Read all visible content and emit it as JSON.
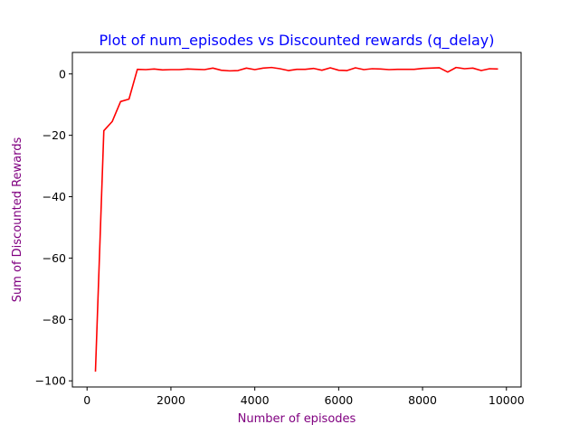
{
  "chart_data": {
    "type": "line",
    "title": "Plot of num_episodes vs Discounted rewards (q_delay)",
    "xlabel": "Number of episodes",
    "ylabel": "Sum of Discounted Rewards",
    "xlim": [
      -350,
      10350
    ],
    "ylim": [
      -102,
      7
    ],
    "xticks": [
      0,
      2000,
      4000,
      6000,
      8000,
      10000
    ],
    "yticks": [
      0,
      -20,
      -40,
      -60,
      -80,
      -100
    ],
    "grid": false,
    "colors": {
      "title": "#0000ff",
      "axis_label": "#800080",
      "line": "#ff0000"
    },
    "x": [
      200,
      400,
      600,
      800,
      1000,
      1200,
      1400,
      1600,
      1800,
      2000,
      2200,
      2400,
      2600,
      2800,
      3000,
      3200,
      3400,
      3600,
      3800,
      4000,
      4200,
      4400,
      4600,
      4800,
      5000,
      5200,
      5400,
      5600,
      5800,
      6000,
      6200,
      6400,
      6600,
      6800,
      7000,
      7200,
      7400,
      7600,
      7800,
      8000,
      8200,
      8400,
      8600,
      8800,
      9000,
      9200,
      9400,
      9600,
      9800
    ],
    "y": [
      -97,
      -18.5,
      -15.5,
      -9,
      -8.2,
      1.5,
      1.4,
      1.6,
      1.3,
      1.4,
      1.4,
      1.6,
      1.5,
      1.4,
      1.9,
      1.2,
      1.0,
      1.1,
      1.9,
      1.4,
      1.9,
      2.1,
      1.7,
      1.1,
      1.5,
      1.5,
      1.8,
      1.2,
      2.0,
      1.2,
      1.1,
      2.0,
      1.4,
      1.7,
      1.6,
      1.4,
      1.5,
      1.5,
      1.5,
      1.8,
      1.9,
      2.0,
      0.6,
      2.1,
      1.7,
      1.9,
      1.1,
      1.7,
      1.6
    ]
  }
}
